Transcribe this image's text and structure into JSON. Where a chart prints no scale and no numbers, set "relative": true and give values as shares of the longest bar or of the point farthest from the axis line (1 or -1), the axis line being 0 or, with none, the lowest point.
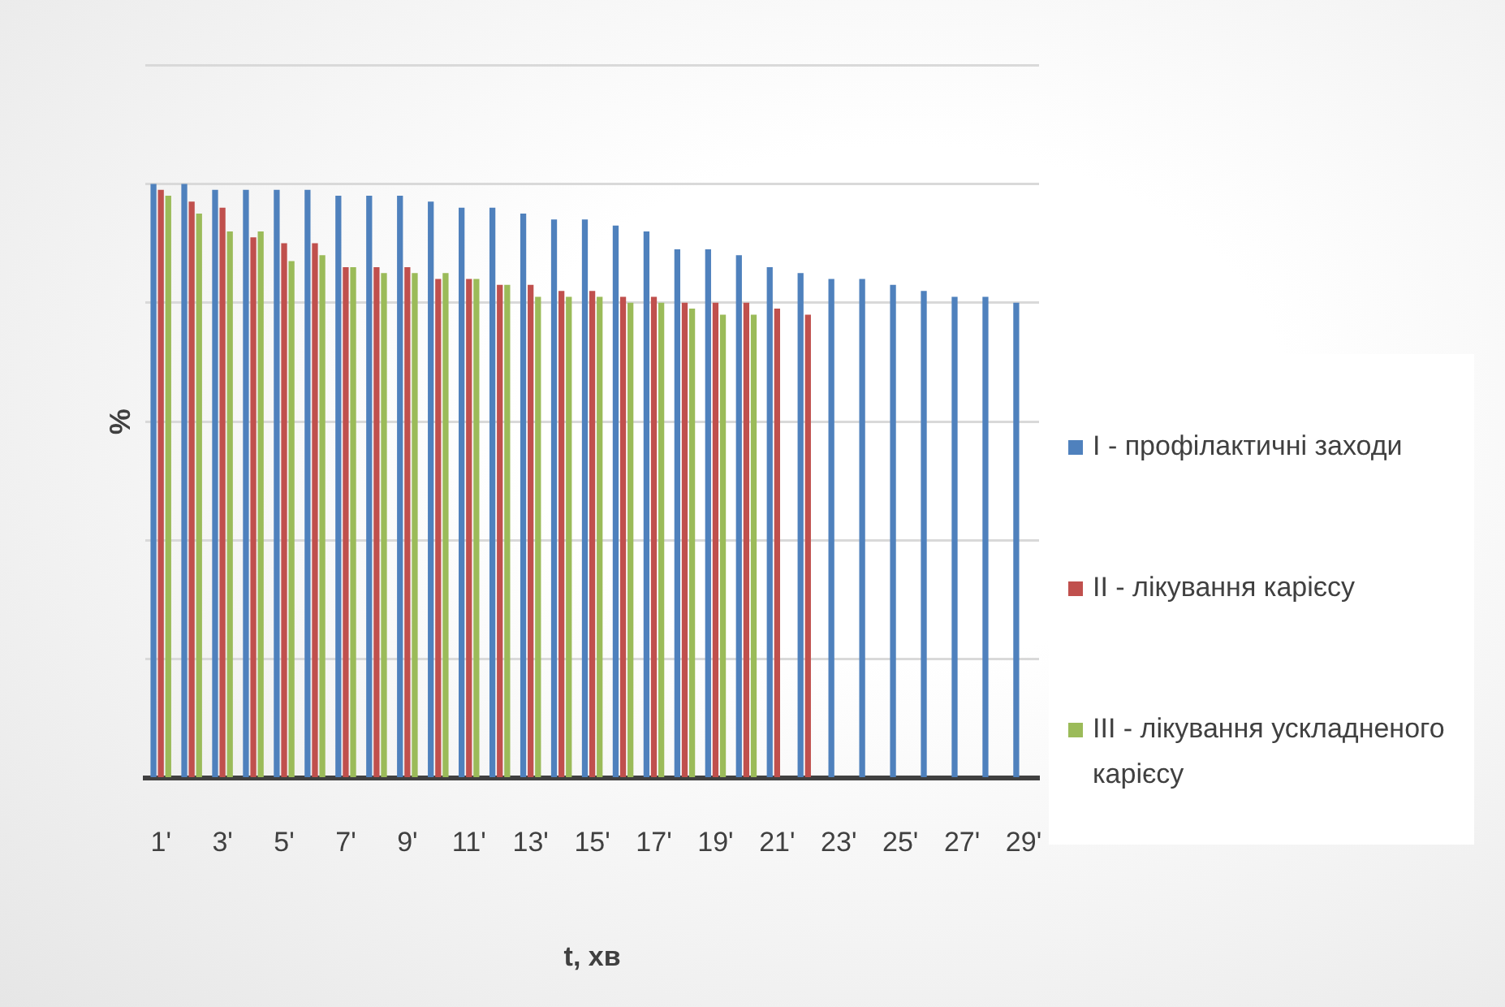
{
  "chart_data": {
    "type": "bar",
    "relative": true,
    "xlabel": "t, хв",
    "ylabel": "%",
    "grid": "y",
    "legend": "right",
    "categories": [
      "1'",
      null,
      "3'",
      null,
      "5'",
      null,
      "7'",
      null,
      "9'",
      null,
      "11'",
      null,
      "13'",
      null,
      "15'",
      null,
      "17'",
      null,
      "19'",
      null,
      "21'",
      null,
      "23'",
      null,
      "25'",
      null,
      "27'",
      null,
      "29'"
    ],
    "series": [
      {
        "name": "I - профілактичні заходи",
        "color": "#4f81bd",
        "values": [
          1,
          1,
          0.99,
          0.99,
          0.99,
          0.99,
          0.98,
          0.98,
          0.98,
          0.97,
          0.96,
          0.96,
          0.95,
          0.94,
          0.94,
          0.93,
          0.92,
          0.89,
          0.89,
          0.88,
          0.86,
          0.85,
          0.84,
          0.84,
          0.83,
          0.82,
          0.81,
          0.81,
          0.8
        ]
      },
      {
        "name": "II - лікування карієсу",
        "color": "#c0504d",
        "values": [
          0.99,
          0.97,
          0.96,
          0.91,
          0.9,
          0.9,
          0.86,
          0.86,
          0.86,
          0.84,
          0.84,
          0.83,
          0.83,
          0.82,
          0.82,
          0.81,
          0.81,
          0.8,
          0.8,
          0.8,
          0.79,
          0.78,
          null,
          null,
          null,
          null,
          null,
          null,
          null
        ]
      },
      {
        "name": "III - лікування ускладненого карієсу",
        "color": "#9bbb59",
        "values": [
          0.98,
          0.95,
          0.92,
          0.92,
          0.87,
          0.88,
          0.86,
          0.85,
          0.85,
          0.85,
          0.84,
          0.83,
          0.81,
          0.81,
          0.81,
          0.8,
          0.8,
          0.79,
          0.78,
          0.78,
          null,
          null,
          null,
          null,
          null,
          null,
          null,
          null,
          null
        ]
      }
    ]
  }
}
